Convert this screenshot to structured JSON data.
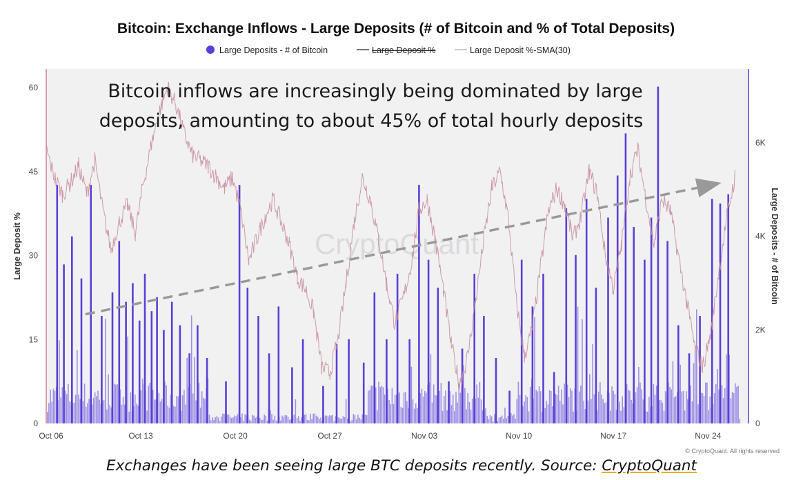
{
  "chart_data": {
    "type": "bar",
    "title": "Bitcoin: Exchange Inflows - Large Deposits (# of Bitcoin and % of Total Deposits)",
    "annotation": {
      "line1": "Bitcoin inflows are increasingly being dominated by large",
      "line2": "deposits, amounting to about 45% of total hourly deposits"
    },
    "watermark": "CryptoQuant",
    "copyright": "© CryptoQuant. All rights reserved",
    "legend": {
      "position": "top",
      "items": [
        {
          "label": "Large Deposits - # of Bitcoin",
          "symbol": "dot",
          "color": "#5a3fd6"
        },
        {
          "label": "Large Deposit %",
          "symbol": "line",
          "color": "#444444",
          "struck": true
        },
        {
          "label": "Large Deposit %-SMA(30)",
          "symbol": "line",
          "color": "#bbbbbb"
        }
      ]
    },
    "x_axis": {
      "ticks": [
        "Oct 06",
        "Oct 13",
        "Oct 20",
        "Oct 27",
        "Nov 03",
        "Nov 10",
        "Nov 17",
        "Nov 24"
      ],
      "range_days": [
        0,
        52
      ]
    },
    "y_left": {
      "label": "Large Deposit %",
      "ticks": [
        "0",
        "15",
        "30",
        "45",
        "60"
      ],
      "range": [
        0,
        60
      ]
    },
    "y_right": {
      "label": "Large Deposits - # of Bitcoin",
      "ticks": [
        "0",
        "2K",
        "4K",
        "6K"
      ],
      "range": [
        0,
        7200
      ]
    },
    "grid": false,
    "trend_arrow": {
      "from": {
        "day": 2.9,
        "pct": 19.5
      },
      "to": {
        "day": 50.0,
        "pct": 43.0
      }
    },
    "series": [
      {
        "name": "Large Deposits - # of Bitcoin",
        "axis": "right",
        "color": "#5a3fd6",
        "spikes": [
          {
            "day": 0.8,
            "value": 5100
          },
          {
            "day": 1.3,
            "value": 3400
          },
          {
            "day": 1.9,
            "value": 4000
          },
          {
            "day": 2.6,
            "value": 3100
          },
          {
            "day": 3.3,
            "value": 5100
          },
          {
            "day": 4.1,
            "value": 2300
          },
          {
            "day": 4.9,
            "value": 2800
          },
          {
            "day": 5.4,
            "value": 3900
          },
          {
            "day": 5.9,
            "value": 2600
          },
          {
            "day": 6.4,
            "value": 3000
          },
          {
            "day": 6.9,
            "value": 2200
          },
          {
            "day": 7.3,
            "value": 3200
          },
          {
            "day": 7.8,
            "value": 2400
          },
          {
            "day": 8.2,
            "value": 2700
          },
          {
            "day": 8.7,
            "value": 2000
          },
          {
            "day": 9.3,
            "value": 2600
          },
          {
            "day": 9.9,
            "value": 2100
          },
          {
            "day": 10.6,
            "value": 1500
          },
          {
            "day": 11.2,
            "value": 2100
          },
          {
            "day": 11.9,
            "value": 1400
          },
          {
            "day": 13.3,
            "value": 900
          },
          {
            "day": 14.3,
            "value": 5100
          },
          {
            "day": 14.9,
            "value": 2900
          },
          {
            "day": 15.7,
            "value": 2300
          },
          {
            "day": 16.5,
            "value": 1500
          },
          {
            "day": 17.2,
            "value": 2500
          },
          {
            "day": 18.2,
            "value": 1200
          },
          {
            "day": 19.0,
            "value": 1800
          },
          {
            "day": 20.5,
            "value": 800
          },
          {
            "day": 21.5,
            "value": 1700
          },
          {
            "day": 22.4,
            "value": 1800
          },
          {
            "day": 23.5,
            "value": 1300
          },
          {
            "day": 24.3,
            "value": 2800
          },
          {
            "day": 25.2,
            "value": 1800
          },
          {
            "day": 26.0,
            "value": 3200
          },
          {
            "day": 26.9,
            "value": 1800
          },
          {
            "day": 27.6,
            "value": 5100
          },
          {
            "day": 28.3,
            "value": 3500
          },
          {
            "day": 29.0,
            "value": 2900
          },
          {
            "day": 29.8,
            "value": 900
          },
          {
            "day": 30.8,
            "value": 1600
          },
          {
            "day": 31.7,
            "value": 3200
          },
          {
            "day": 32.4,
            "value": 2300
          },
          {
            "day": 33.3,
            "value": 1400
          },
          {
            "day": 34.3,
            "value": 700
          },
          {
            "day": 35.2,
            "value": 3500
          },
          {
            "day": 36.0,
            "value": 2500
          },
          {
            "day": 36.8,
            "value": 3200
          },
          {
            "day": 37.6,
            "value": 1100
          },
          {
            "day": 38.5,
            "value": 4600
          },
          {
            "day": 39.2,
            "value": 3600
          },
          {
            "day": 40.0,
            "value": 4800
          },
          {
            "day": 40.7,
            "value": 2900
          },
          {
            "day": 41.6,
            "value": 4400
          },
          {
            "day": 42.3,
            "value": 5300
          },
          {
            "day": 42.9,
            "value": 6200
          },
          {
            "day": 43.5,
            "value": 4200
          },
          {
            "day": 44.3,
            "value": 3500
          },
          {
            "day": 44.8,
            "value": 4400
          },
          {
            "day": 45.3,
            "value": 7200
          },
          {
            "day": 46.0,
            "value": 3900
          },
          {
            "day": 46.8,
            "value": 2100
          },
          {
            "day": 47.6,
            "value": 1500
          },
          {
            "day": 48.4,
            "value": 2300
          },
          {
            "day": 49.3,
            "value": 4800
          },
          {
            "day": 49.9,
            "value": 4700
          },
          {
            "day": 50.5,
            "value": 4900
          }
        ],
        "dense_active_ranges": [
          [
            0.0,
            12.0
          ],
          [
            23.8,
            32.5
          ],
          [
            34.8,
            51.2
          ]
        ]
      },
      {
        "name": "Large Deposit %",
        "axis": "left",
        "color": "#c9909f",
        "points": [
          {
            "day": 0.0,
            "pct": 49
          },
          {
            "day": 0.6,
            "pct": 44
          },
          {
            "day": 1.2,
            "pct": 41
          },
          {
            "day": 1.8,
            "pct": 43
          },
          {
            "day": 2.4,
            "pct": 46
          },
          {
            "day": 3.0,
            "pct": 41
          },
          {
            "day": 3.6,
            "pct": 47
          },
          {
            "day": 4.2,
            "pct": 38
          },
          {
            "day": 4.8,
            "pct": 31
          },
          {
            "day": 5.4,
            "pct": 36
          },
          {
            "day": 6.0,
            "pct": 39
          },
          {
            "day": 6.6,
            "pct": 34
          },
          {
            "day": 7.2,
            "pct": 43
          },
          {
            "day": 7.8,
            "pct": 50
          },
          {
            "day": 8.4,
            "pct": 56
          },
          {
            "day": 9.0,
            "pct": 60
          },
          {
            "day": 9.6,
            "pct": 57
          },
          {
            "day": 10.2,
            "pct": 52
          },
          {
            "day": 10.8,
            "pct": 48
          },
          {
            "day": 11.4,
            "pct": 47
          },
          {
            "day": 12.0,
            "pct": 46
          },
          {
            "day": 12.6,
            "pct": 44
          },
          {
            "day": 13.2,
            "pct": 42
          },
          {
            "day": 13.8,
            "pct": 44
          },
          {
            "day": 14.4,
            "pct": 38
          },
          {
            "day": 15.0,
            "pct": 29
          },
          {
            "day": 15.6,
            "pct": 33
          },
          {
            "day": 16.2,
            "pct": 37
          },
          {
            "day": 16.8,
            "pct": 40
          },
          {
            "day": 17.4,
            "pct": 36
          },
          {
            "day": 18.0,
            "pct": 32
          },
          {
            "day": 18.6,
            "pct": 26
          },
          {
            "day": 19.2,
            "pct": 24
          },
          {
            "day": 19.8,
            "pct": 20
          },
          {
            "day": 20.4,
            "pct": 10
          },
          {
            "day": 21.0,
            "pct": 9
          },
          {
            "day": 21.6,
            "pct": 15
          },
          {
            "day": 22.2,
            "pct": 25
          },
          {
            "day": 22.8,
            "pct": 36
          },
          {
            "day": 23.4,
            "pct": 44
          },
          {
            "day": 24.0,
            "pct": 40
          },
          {
            "day": 24.6,
            "pct": 33
          },
          {
            "day": 25.2,
            "pct": 25
          },
          {
            "day": 25.8,
            "pct": 18
          },
          {
            "day": 26.4,
            "pct": 22
          },
          {
            "day": 27.0,
            "pct": 28
          },
          {
            "day": 27.6,
            "pct": 38
          },
          {
            "day": 28.2,
            "pct": 40
          },
          {
            "day": 28.8,
            "pct": 33
          },
          {
            "day": 29.4,
            "pct": 24
          },
          {
            "day": 30.0,
            "pct": 14
          },
          {
            "day": 30.6,
            "pct": 7
          },
          {
            "day": 31.2,
            "pct": 12
          },
          {
            "day": 31.8,
            "pct": 22
          },
          {
            "day": 32.4,
            "pct": 33
          },
          {
            "day": 33.0,
            "pct": 42
          },
          {
            "day": 33.6,
            "pct": 45
          },
          {
            "day": 34.2,
            "pct": 37
          },
          {
            "day": 34.8,
            "pct": 22
          },
          {
            "day": 35.4,
            "pct": 12
          },
          {
            "day": 36.0,
            "pct": 17
          },
          {
            "day": 36.6,
            "pct": 28
          },
          {
            "day": 37.2,
            "pct": 38
          },
          {
            "day": 37.8,
            "pct": 42
          },
          {
            "day": 38.4,
            "pct": 39
          },
          {
            "day": 39.0,
            "pct": 33
          },
          {
            "day": 39.6,
            "pct": 37
          },
          {
            "day": 40.2,
            "pct": 45
          },
          {
            "day": 40.8,
            "pct": 41
          },
          {
            "day": 41.4,
            "pct": 30
          },
          {
            "day": 42.0,
            "pct": 24
          },
          {
            "day": 42.6,
            "pct": 32
          },
          {
            "day": 43.2,
            "pct": 44
          },
          {
            "day": 43.8,
            "pct": 49
          },
          {
            "day": 44.4,
            "pct": 40
          },
          {
            "day": 45.0,
            "pct": 32
          },
          {
            "day": 45.6,
            "pct": 40
          },
          {
            "day": 46.2,
            "pct": 38
          },
          {
            "day": 46.8,
            "pct": 30
          },
          {
            "day": 47.4,
            "pct": 22
          },
          {
            "day": 48.0,
            "pct": 14
          },
          {
            "day": 48.6,
            "pct": 10
          },
          {
            "day": 49.2,
            "pct": 16
          },
          {
            "day": 49.8,
            "pct": 27
          },
          {
            "day": 50.4,
            "pct": 37
          },
          {
            "day": 51.0,
            "pct": 44
          }
        ]
      }
    ]
  },
  "caption": {
    "prefix": "Exchanges have been seeing large BTC deposits recently. Source: ",
    "link": "CryptoQuant"
  }
}
